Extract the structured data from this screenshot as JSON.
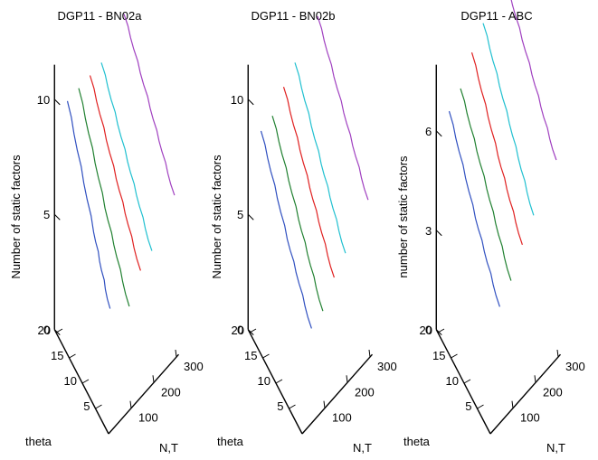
{
  "chart_data": [
    {
      "type": "line",
      "title": "DGP11 - BN02a",
      "zlabel": "Number of static factors",
      "xlabel": "N,T",
      "ylabel": "theta",
      "zlim": [
        0,
        11.5
      ],
      "zticks": [
        {
          "v": 0,
          "label": "0"
        },
        {
          "v": 5,
          "label": "5"
        },
        {
          "v": 10,
          "label": "10"
        }
      ],
      "nt_ticks": [
        {
          "v": 100,
          "label": "100"
        },
        {
          "v": 200,
          "label": "200"
        },
        {
          "v": 300,
          "label": "300"
        }
      ],
      "theta_ticks": [
        {
          "v": 5,
          "label": "5"
        },
        {
          "v": 10,
          "label": "10"
        },
        {
          "v": 15,
          "label": "15"
        },
        {
          "v": 20,
          "label": "20"
        }
      ],
      "series": [
        {
          "color": "#3050c0",
          "points": [
            [
              50,
              20,
              9.5
            ],
            [
              50,
              10,
              6.0
            ],
            [
              50,
              4,
              4.0
            ]
          ]
        },
        {
          "color": "#208030",
          "points": [
            [
              100,
              20,
              9.5
            ],
            [
              100,
              10,
              6.5
            ],
            [
              100,
              1,
              4.2
            ]
          ]
        },
        {
          "color": "#e02020",
          "points": [
            [
              150,
              20,
              9.5
            ],
            [
              150,
              10,
              7.2
            ],
            [
              150,
              1,
              5.2
            ]
          ]
        },
        {
          "color": "#20c0d0",
          "points": [
            [
              200,
              20,
              9.5
            ],
            [
              200,
              10,
              7.4
            ],
            [
              200,
              1,
              5.5
            ]
          ]
        },
        {
          "color": "#a040c0",
          "points": [
            [
              300,
              20,
              10.5
            ],
            [
              300,
              10,
              8.6
            ],
            [
              300,
              1,
              6.8
            ]
          ]
        }
      ]
    },
    {
      "type": "line",
      "title": "DGP11 - BN02b",
      "zlabel": "Number of static factors",
      "xlabel": "N,T",
      "ylabel": "theta",
      "zlim": [
        0,
        11.5
      ],
      "zticks": [
        {
          "v": 0,
          "label": "0"
        },
        {
          "v": 5,
          "label": "5"
        },
        {
          "v": 10,
          "label": "10"
        }
      ],
      "nt_ticks": [
        {
          "v": 100,
          "label": "100"
        },
        {
          "v": 200,
          "label": "200"
        },
        {
          "v": 300,
          "label": "300"
        }
      ],
      "theta_ticks": [
        {
          "v": 5,
          "label": "5"
        },
        {
          "v": 10,
          "label": "10"
        },
        {
          "v": 15,
          "label": "15"
        },
        {
          "v": 20,
          "label": "20"
        }
      ],
      "series": [
        {
          "color": "#3050c0",
          "points": [
            [
              50,
              20,
              8.2
            ],
            [
              50,
              10,
              5.7
            ],
            [
              50,
              1,
              3.8
            ]
          ]
        },
        {
          "color": "#208030",
          "points": [
            [
              100,
              20,
              8.3
            ],
            [
              100,
              10,
              6.0
            ],
            [
              100,
              1,
              4.0
            ]
          ]
        },
        {
          "color": "#e02020",
          "points": [
            [
              150,
              20,
              9.0
            ],
            [
              150,
              10,
              6.8
            ],
            [
              150,
              1,
              4.9
            ]
          ]
        },
        {
          "color": "#20c0d0",
          "points": [
            [
              200,
              20,
              9.5
            ],
            [
              200,
              10,
              7.3
            ],
            [
              200,
              1,
              5.4
            ]
          ]
        },
        {
          "color": "#a040c0",
          "points": [
            [
              300,
              20,
              10.4
            ],
            [
              300,
              10,
              8.4
            ],
            [
              300,
              1,
              6.6
            ]
          ]
        }
      ]
    },
    {
      "type": "line",
      "title": "DGP11 - ABC",
      "zlabel": "number of static factors",
      "xlabel": "N,T",
      "ylabel": "theta",
      "zlim": [
        0,
        8.0
      ],
      "zticks": [
        {
          "v": 0,
          "label": "0"
        },
        {
          "v": 3,
          "label": "3"
        },
        {
          "v": 6,
          "label": "6"
        }
      ],
      "nt_ticks": [
        {
          "v": 100,
          "label": "100"
        },
        {
          "v": 200,
          "label": "200"
        },
        {
          "v": 300,
          "label": "300"
        }
      ],
      "theta_ticks": [
        {
          "v": 5,
          "label": "5"
        },
        {
          "v": 10,
          "label": "10"
        },
        {
          "v": 15,
          "label": "15"
        },
        {
          "v": 20,
          "label": "20"
        }
      ],
      "series": [
        {
          "color": "#3050c0",
          "points": [
            [
              50,
              20,
              6.3
            ],
            [
              50,
              10,
              4.6
            ],
            [
              50,
              1,
              3.3
            ]
          ]
        },
        {
          "color": "#208030",
          "points": [
            [
              100,
              20,
              6.6
            ],
            [
              100,
              10,
              5.1
            ],
            [
              100,
              1,
              3.7
            ]
          ]
        },
        {
          "color": "#e02020",
          "points": [
            [
              150,
              20,
              7.3
            ],
            [
              150,
              10,
              5.7
            ],
            [
              150,
              1,
              4.4
            ]
          ]
        },
        {
          "color": "#20c0d0",
          "points": [
            [
              200,
              20,
              7.8
            ],
            [
              200,
              10,
              6.3
            ],
            [
              200,
              1,
              4.9
            ]
          ]
        },
        {
          "color": "#a040c0",
          "points": [
            [
              300,
              20,
              8.3
            ],
            [
              300,
              10,
              7.0
            ],
            [
              300,
              1,
              5.8
            ]
          ]
        }
      ]
    }
  ]
}
